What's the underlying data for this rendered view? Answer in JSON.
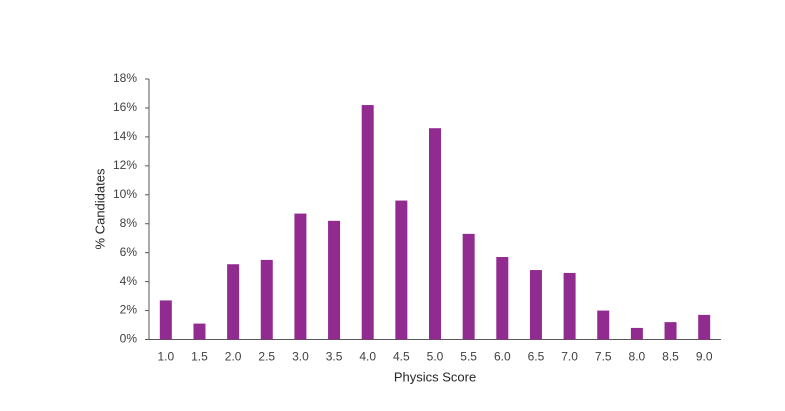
{
  "chart_data": {
    "type": "bar",
    "x_label": "Physics Score",
    "y_label": "% Candidates",
    "categories": [
      "1.0",
      "1.5",
      "2.0",
      "2.5",
      "3.0",
      "3.5",
      "4.0",
      "4.5",
      "5.0",
      "5.5",
      "6.0",
      "6.5",
      "7.0",
      "7.5",
      "8.0",
      "8.5",
      "9.0"
    ],
    "values": [
      2.7,
      1.1,
      5.2,
      5.5,
      8.7,
      8.2,
      16.2,
      9.6,
      14.6,
      7.3,
      5.7,
      4.8,
      4.6,
      2.0,
      0.8,
      1.2,
      1.7
    ],
    "color": "#922b90",
    "ylim": [
      0,
      18
    ],
    "yticks": [
      {
        "value": 0,
        "label": "0%"
      },
      {
        "value": 2,
        "label": "2%"
      },
      {
        "value": 4,
        "label": "4%"
      },
      {
        "value": 6,
        "label": "6%"
      },
      {
        "value": 8,
        "label": "8%"
      },
      {
        "value": 10,
        "label": "10%"
      },
      {
        "value": 12,
        "label": "12%"
      },
      {
        "value": 14,
        "label": "14%"
      },
      {
        "value": 16,
        "label": "16%"
      },
      {
        "value": 18,
        "label": "18%"
      }
    ],
    "grid": false
  }
}
